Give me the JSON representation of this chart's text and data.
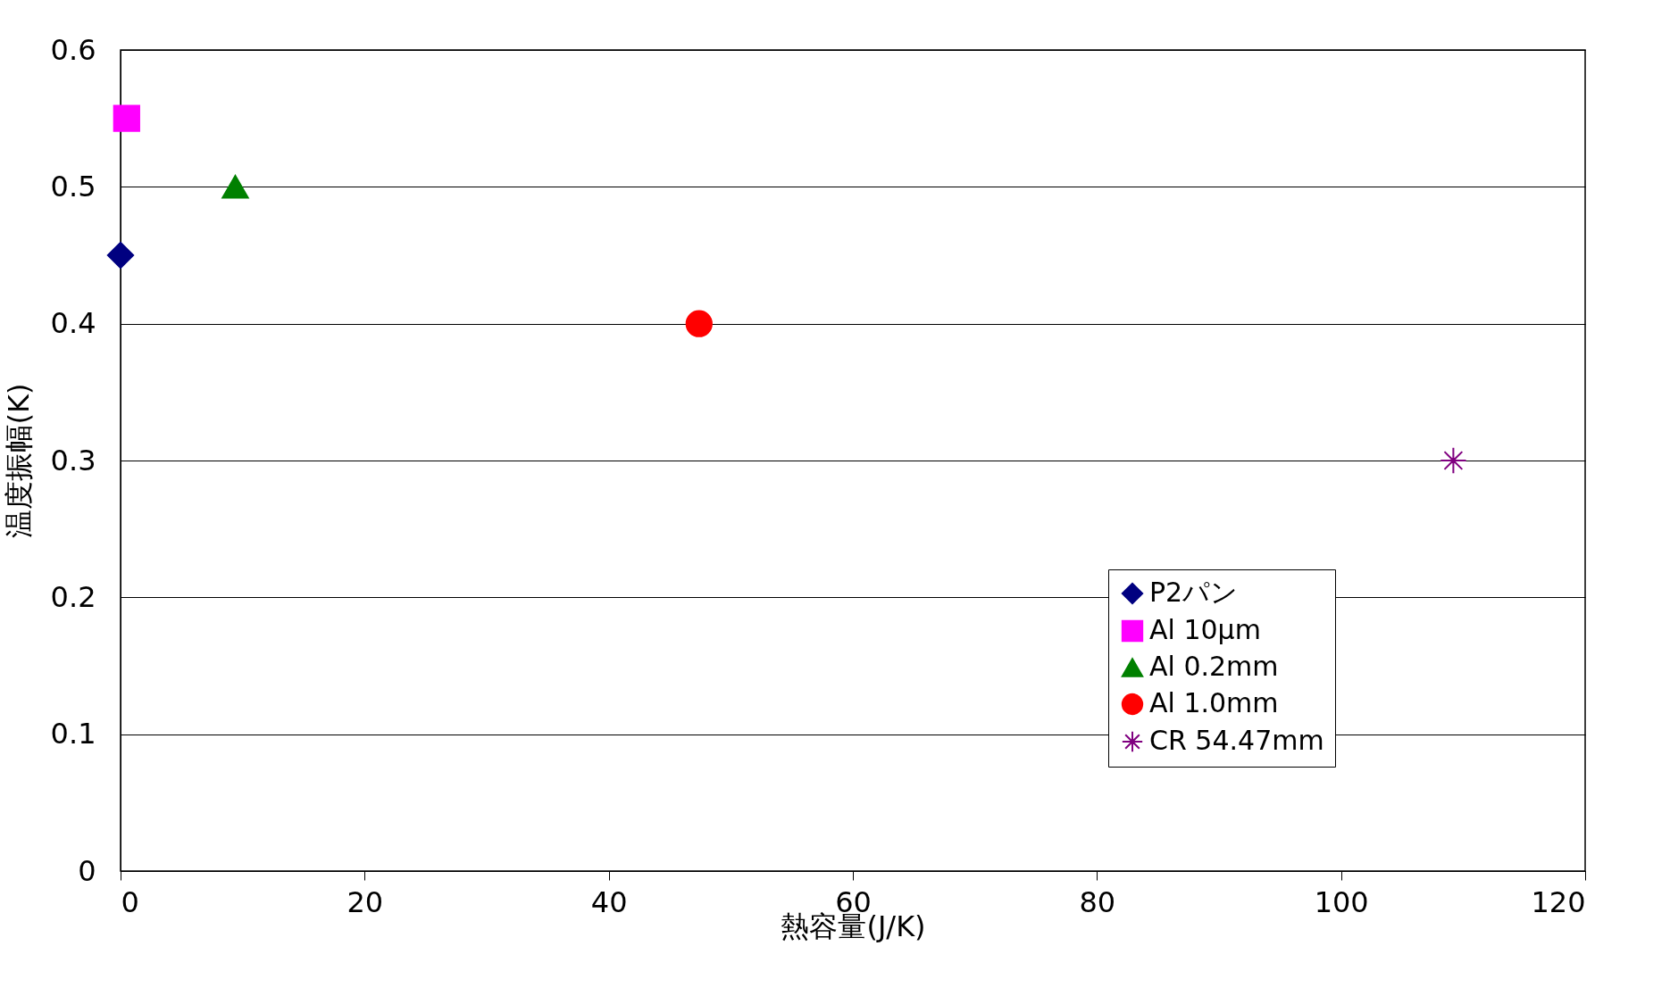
{
  "chart_data": {
    "type": "scatter",
    "xlabel": "熱容量(J/K)",
    "ylabel": "温度振幅(K)",
    "xlim": [
      0,
      120
    ],
    "xticks": [
      0,
      20,
      40,
      60,
      80,
      100,
      120
    ],
    "ylim": [
      0,
      0.6
    ],
    "yticks": [
      0,
      0.1,
      0.2,
      0.3,
      0.4,
      0.5,
      0.6
    ],
    "grid": "y",
    "legend": "bottom right",
    "series": [
      {
        "name": "P2パン",
        "color": "#000080",
        "marker": "diamond",
        "x": [
          0
        ],
        "values": [
          0.45
        ]
      },
      {
        "name": "Al 10μm",
        "color": "#ff00ff",
        "marker": "square",
        "x": [
          0.5
        ],
        "values": [
          0.55
        ]
      },
      {
        "name": "Al 0.2mm",
        "color": "#008000",
        "marker": "triangle",
        "x": [
          9.4
        ],
        "values": [
          0.5
        ]
      },
      {
        "name": "Al 1.0mm",
        "color": "#ff0000",
        "marker": "circle",
        "x": [
          47.4
        ],
        "values": [
          0.4
        ]
      },
      {
        "name": "CR 54.47mm",
        "color": "#800080",
        "marker": "cross",
        "x": [
          109.2
        ],
        "values": [
          0.3
        ]
      }
    ]
  }
}
